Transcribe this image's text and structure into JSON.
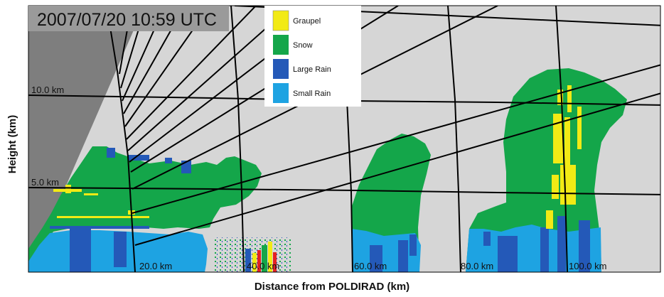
{
  "timestamp": "2007/07/20 10:59 UTC",
  "y_axis_label": "Height (km)",
  "x_axis_label": "Distance from POLDIRAD (km)",
  "height_labels": [
    "10.0 km",
    "5.0 km"
  ],
  "distance_labels": [
    "20.0 km",
    "40.0 km",
    "60.0 km",
    "80.0 km",
    "100.0 km"
  ],
  "legend": [
    {
      "label": "Graupel",
      "color": "#f2ea15"
    },
    {
      "label": "Snow",
      "color": "#14a64a"
    },
    {
      "label": "Large Rain",
      "color": "#2459b8"
    },
    {
      "label": "Small Rain",
      "color": "#1ea3e2"
    }
  ],
  "colors": {
    "background": "#d6d6d6",
    "terrain_shadow": "#7e7e7e",
    "graupel": "#f2ea15",
    "snow": "#14a64a",
    "large_rain": "#2459b8",
    "small_rain": "#1ea3e2"
  }
}
